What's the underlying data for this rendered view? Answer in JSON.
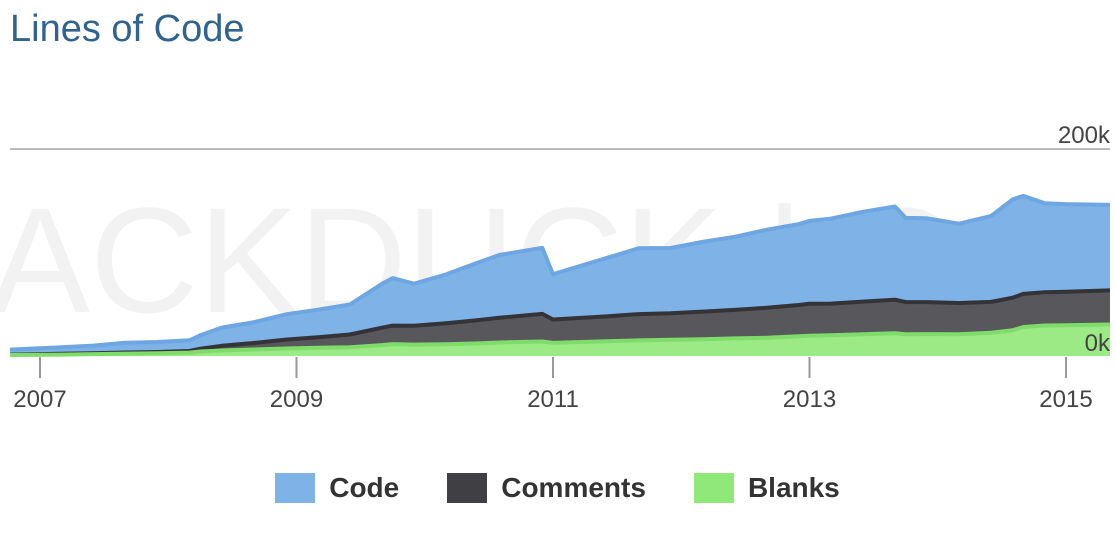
{
  "title": "Lines of Code",
  "chart_data": {
    "type": "area",
    "stacked": true,
    "ylim": [
      0,
      200000
    ],
    "y_tick_labels": [
      {
        "value": 200000,
        "label": "200k"
      },
      {
        "value": 0,
        "label": "0k"
      }
    ],
    "x_ticks": [
      "2007",
      "2009",
      "2011",
      "2013",
      "2015"
    ],
    "x": [
      "2007-01",
      "2007-03",
      "2007-06",
      "2007-09",
      "2007-12",
      "2008-03",
      "2008-04",
      "2008-06",
      "2008-09",
      "2008-12",
      "2009-03",
      "2009-06",
      "2009-09",
      "2009-10",
      "2009-12",
      "2010-03",
      "2010-06",
      "2010-08",
      "2010-12",
      "2011-01",
      "2011-06",
      "2011-09",
      "2011-12",
      "2012-03",
      "2012-06",
      "2012-09",
      "2012-12",
      "2013-01",
      "2013-03",
      "2013-06",
      "2013-09",
      "2013-10",
      "2013-12",
      "2014-03",
      "2014-06",
      "2014-08",
      "2014-09",
      "2014-11",
      "2015-01",
      "2015-04"
    ],
    "series": [
      {
        "name": "Code",
        "color": "#7fb2e6",
        "line_color": "#6da6e2",
        "values": [
          4800,
          6300,
          7300,
          9400,
          9600,
          10400,
          12900,
          17500,
          20100,
          24500,
          26600,
          29000,
          42500,
          45900,
          40700,
          47100,
          55600,
          60700,
          63700,
          43700,
          56300,
          63600,
          63000,
          67300,
          70700,
          75400,
          78100,
          80000,
          82200,
          86700,
          90000,
          81300,
          80900,
          76600,
          83100,
          95000,
          94700,
          86100,
          84700,
          82600
        ]
      },
      {
        "name": "Comments",
        "color": "#58585c",
        "line_color": "#333338",
        "values": [
          400,
          700,
          900,
          1100,
          1300,
          1500,
          2800,
          4600,
          6300,
          8600,
          10200,
          12300,
          16800,
          17900,
          18200,
          20300,
          22500,
          24000,
          26700,
          22600,
          24100,
          25400,
          25600,
          26800,
          27500,
          29000,
          30300,
          31000,
          30500,
          31600,
          32400,
          31100,
          30900,
          30200,
          29800,
          31500,
          32000,
          32000,
          32400,
          33000
        ]
      },
      {
        "name": "Blanks",
        "color": "#9bea85",
        "line_color": "#7fdc6a",
        "values": [
          1000,
          1400,
          1800,
          2300,
          2600,
          3300,
          4300,
          5300,
          6300,
          7200,
          7900,
          8500,
          10500,
          11500,
          11000,
          11400,
          12200,
          13000,
          14000,
          12700,
          14200,
          15100,
          15700,
          16100,
          17000,
          17600,
          19000,
          19500,
          20100,
          21000,
          22000,
          21000,
          21200,
          21000,
          22500,
          24800,
          28000,
          29500,
          29700,
          30400
        ]
      }
    ],
    "watermark": "ACKDUCK | Op",
    "grid": false,
    "legend_position": "bottom"
  }
}
